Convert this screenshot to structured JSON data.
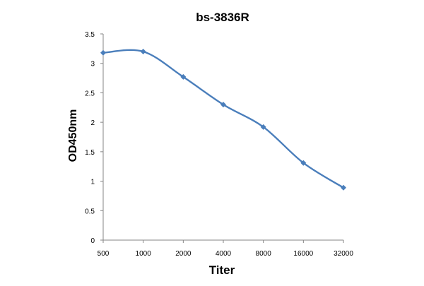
{
  "chart_data": {
    "type": "line",
    "title": "bs-3836R",
    "xlabel": "Titer",
    "ylabel": "OD450nm",
    "categories": [
      "500",
      "1000",
      "2000",
      "4000",
      "8000",
      "16000",
      "32000"
    ],
    "series": [
      {
        "values": [
          3.18,
          3.2,
          2.77,
          2.3,
          1.92,
          1.31,
          0.89
        ],
        "color": "#4a7ebb"
      }
    ],
    "ylim": [
      0,
      3.5
    ],
    "yticks": [
      "0",
      "0.5",
      "1",
      "1.5",
      "2",
      "2.5",
      "3",
      "3.5"
    ],
    "grid": false,
    "legend": "none",
    "marker": "diamond",
    "smooth": true
  }
}
